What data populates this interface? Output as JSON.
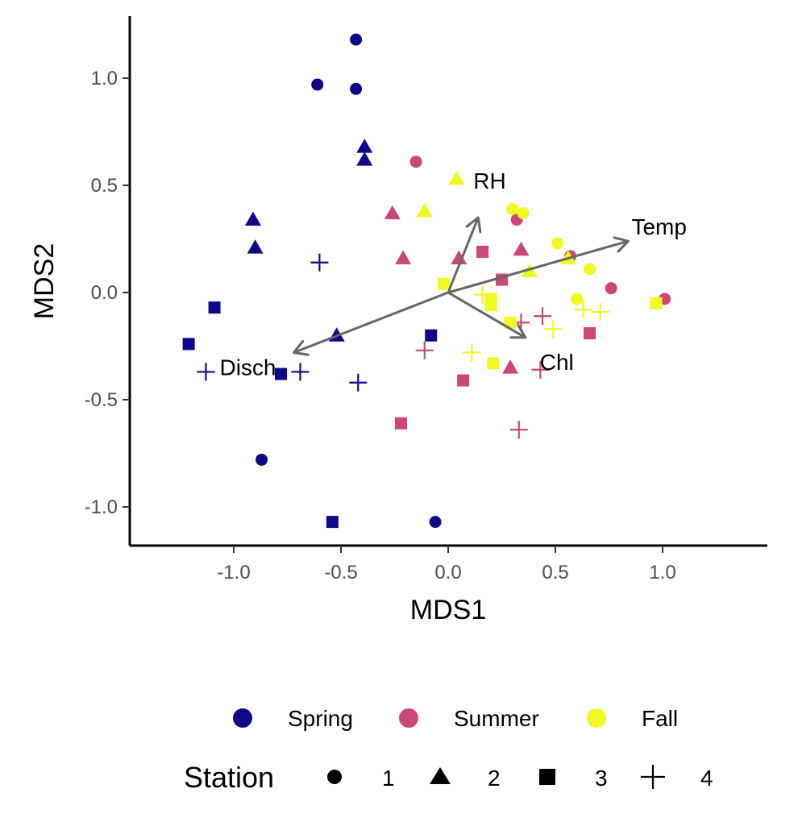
{
  "chart_data": {
    "type": "scatter",
    "title": "",
    "xlabel": "MDS1",
    "ylabel": "MDS2",
    "xlim": [
      -1.48,
      1.48
    ],
    "ylim": [
      -1.18,
      1.29
    ],
    "xticks": [
      -1.0,
      -0.5,
      0.0,
      0.5,
      1.0
    ],
    "xtick_labels": [
      "-1.0",
      "-0.5",
      "0.0",
      "0.5",
      "1.0"
    ],
    "yticks": [
      -1.0,
      -0.5,
      0.0,
      0.5,
      1.0
    ],
    "ytick_labels": [
      "-1.0",
      "-0.5",
      "0.0",
      "0.5",
      "1.0"
    ],
    "grid": false,
    "legend_position": "bottom",
    "colors": {
      "Spring": "#0d0887",
      "Summer": "#cc4778",
      "Fall": "#f0f921"
    },
    "arrow_color": "#666666",
    "vectors": [
      {
        "name": "Temp",
        "x": 0.84,
        "y": 0.24
      },
      {
        "name": "RH",
        "x": 0.14,
        "y": 0.35
      },
      {
        "name": "Chl",
        "x": 0.36,
        "y": -0.21
      },
      {
        "name": "Disch",
        "x": -0.72,
        "y": -0.28
      }
    ],
    "vector_label_display": [
      "Temp",
      "RH",
      "Chl",
      "Disch"
    ],
    "season_legend": {
      "title": "",
      "items": [
        "Spring",
        "Summer",
        "Fall"
      ]
    },
    "station_legend": {
      "title": "Station",
      "items": [
        "1",
        "2",
        "3",
        "4"
      ]
    },
    "series": [
      {
        "name": "Spring",
        "points": [
          {
            "x": -0.43,
            "y": 1.18,
            "station": "1"
          },
          {
            "x": -0.61,
            "y": 0.97,
            "station": "1"
          },
          {
            "x": -0.43,
            "y": 0.95,
            "station": "1"
          },
          {
            "x": -0.87,
            "y": -0.78,
            "station": "1"
          },
          {
            "x": -0.06,
            "y": -1.07,
            "station": "1"
          },
          {
            "x": -0.39,
            "y": 0.68,
            "station": "2"
          },
          {
            "x": -0.39,
            "y": 0.62,
            "station": "2"
          },
          {
            "x": -0.91,
            "y": 0.34,
            "station": "2"
          },
          {
            "x": -0.9,
            "y": 0.21,
            "station": "2"
          },
          {
            "x": -0.52,
            "y": -0.2,
            "station": "2"
          },
          {
            "x": -1.09,
            "y": -0.07,
            "station": "3"
          },
          {
            "x": -1.21,
            "y": -0.24,
            "station": "3"
          },
          {
            "x": -0.78,
            "y": -0.38,
            "station": "3"
          },
          {
            "x": -0.08,
            "y": -0.2,
            "station": "3"
          },
          {
            "x": -0.54,
            "y": -1.07,
            "station": "3"
          },
          {
            "x": -0.6,
            "y": 0.14,
            "station": "4"
          },
          {
            "x": -1.13,
            "y": -0.37,
            "station": "4"
          },
          {
            "x": -0.69,
            "y": -0.37,
            "station": "4"
          },
          {
            "x": -0.42,
            "y": -0.42,
            "station": "4"
          }
        ]
      },
      {
        "name": "Summer",
        "points": [
          {
            "x": -0.15,
            "y": 0.61,
            "station": "1"
          },
          {
            "x": 0.32,
            "y": 0.34,
            "station": "1"
          },
          {
            "x": 0.57,
            "y": 0.17,
            "station": "1"
          },
          {
            "x": 0.76,
            "y": 0.02,
            "station": "1"
          },
          {
            "x": 1.01,
            "y": -0.03,
            "station": "1"
          },
          {
            "x": -0.26,
            "y": 0.37,
            "station": "2"
          },
          {
            "x": -0.21,
            "y": 0.16,
            "station": "2"
          },
          {
            "x": 0.05,
            "y": 0.16,
            "station": "2"
          },
          {
            "x": 0.34,
            "y": 0.2,
            "station": "2"
          },
          {
            "x": 0.29,
            "y": -0.35,
            "station": "2"
          },
          {
            "x": 0.16,
            "y": 0.19,
            "station": "3"
          },
          {
            "x": 0.25,
            "y": 0.06,
            "station": "3"
          },
          {
            "x": 0.66,
            "y": -0.19,
            "station": "3"
          },
          {
            "x": 0.07,
            "y": -0.41,
            "station": "3"
          },
          {
            "x": -0.22,
            "y": -0.61,
            "station": "3"
          },
          {
            "x": 0.44,
            "y": -0.11,
            "station": "4"
          },
          {
            "x": 0.34,
            "y": -0.14,
            "station": "4"
          },
          {
            "x": -0.11,
            "y": -0.27,
            "station": "4"
          },
          {
            "x": 0.43,
            "y": -0.36,
            "station": "4"
          },
          {
            "x": 0.33,
            "y": -0.64,
            "station": "4"
          }
        ]
      },
      {
        "name": "Fall",
        "points": [
          {
            "x": 0.3,
            "y": 0.39,
            "station": "1"
          },
          {
            "x": 0.35,
            "y": 0.37,
            "station": "1"
          },
          {
            "x": 0.51,
            "y": 0.23,
            "station": "1"
          },
          {
            "x": 0.66,
            "y": 0.11,
            "station": "1"
          },
          {
            "x": 0.6,
            "y": -0.03,
            "station": "1"
          },
          {
            "x": 0.04,
            "y": 0.53,
            "station": "2"
          },
          {
            "x": -0.11,
            "y": 0.38,
            "station": "2"
          },
          {
            "x": 0.38,
            "y": 0.1,
            "station": "2"
          },
          {
            "x": 0.56,
            "y": 0.16,
            "station": "2"
          },
          {
            "x": -0.02,
            "y": 0.04,
            "station": "3"
          },
          {
            "x": 0.2,
            "y": -0.03,
            "station": "3"
          },
          {
            "x": 0.2,
            "y": -0.06,
            "station": "3"
          },
          {
            "x": 0.29,
            "y": -0.14,
            "station": "3"
          },
          {
            "x": 0.21,
            "y": -0.33,
            "station": "3"
          },
          {
            "x": 0.97,
            "y": -0.05,
            "station": "3"
          },
          {
            "x": 0.16,
            "y": -0.01,
            "station": "4"
          },
          {
            "x": 0.49,
            "y": -0.17,
            "station": "4"
          },
          {
            "x": 0.63,
            "y": -0.08,
            "station": "4"
          },
          {
            "x": 0.71,
            "y": -0.09,
            "station": "4"
          },
          {
            "x": 0.11,
            "y": -0.28,
            "station": "4"
          }
        ]
      }
    ]
  }
}
